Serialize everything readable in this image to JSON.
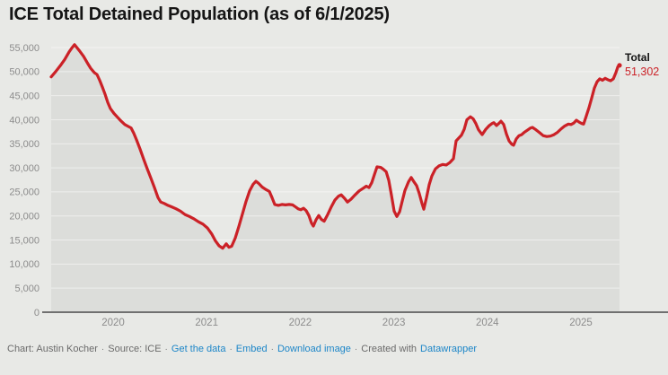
{
  "title": "ICE Total Detained Population (as of 6/1/2025)",
  "annotation": {
    "label": "Total",
    "value": "51,302"
  },
  "footer": {
    "credit": "Chart: Austin Kocher",
    "source": "Source: ICE",
    "sep": "·",
    "links": [
      "Get the data",
      "Embed",
      "Download image"
    ],
    "created_with": "Created with",
    "created_with_link": "Datawrapper"
  },
  "colors": {
    "background": "#e8e9e6",
    "area": "#dcddda",
    "grid": "rgba(255,255,255,0.5)",
    "axis": "#707070",
    "tick": "#8c8c8c",
    "line": "#cb2127",
    "title": "#151515",
    "link": "#1d86c8",
    "footer_text": "#6b6b6b"
  },
  "chart_data": {
    "type": "line",
    "title": "ICE Total Detained Population (as of 6/1/2025)",
    "xlabel": "",
    "ylabel": "",
    "xlim": [
      2019.33,
      2025.42
    ],
    "ylim": [
      0,
      55000
    ],
    "grid": "horizontal",
    "legend_position": "end-of-line",
    "x_ticks": [
      2020,
      2021,
      2022,
      2023,
      2024,
      2025
    ],
    "y_ticks": [
      [
        0,
        "0"
      ],
      [
        5000,
        "5,000"
      ],
      [
        10000,
        "10,000"
      ],
      [
        15000,
        "15,000"
      ],
      [
        20000,
        "20,000"
      ],
      [
        25000,
        "25,000"
      ],
      [
        30000,
        "30,000"
      ],
      [
        35000,
        "35,000"
      ],
      [
        40000,
        "40,000"
      ],
      [
        45000,
        "45,000"
      ],
      [
        50000,
        "50,000"
      ],
      [
        55000,
        "55,000"
      ]
    ],
    "end_label": {
      "name": "Total",
      "value": 51302
    },
    "series": [
      {
        "name": "Total",
        "color": "#cb2127",
        "area_fill": true,
        "points": [
          [
            2019.338,
            48900
          ],
          [
            2019.386,
            50000
          ],
          [
            2019.434,
            51200
          ],
          [
            2019.482,
            52500
          ],
          [
            2019.53,
            54100
          ],
          [
            2019.559,
            54900
          ],
          [
            2019.587,
            55600
          ],
          [
            2019.616,
            54900
          ],
          [
            2019.645,
            54200
          ],
          [
            2019.683,
            53200
          ],
          [
            2019.722,
            51900
          ],
          [
            2019.76,
            50700
          ],
          [
            2019.798,
            49800
          ],
          [
            2019.827,
            49400
          ],
          [
            2019.856,
            48200
          ],
          [
            2019.885,
            46800
          ],
          [
            2019.914,
            45300
          ],
          [
            2019.942,
            43600
          ],
          [
            2019.971,
            42300
          ],
          [
            2020.01,
            41300
          ],
          [
            2020.048,
            40500
          ],
          [
            2020.086,
            39700
          ],
          [
            2020.125,
            39000
          ],
          [
            2020.163,
            38600
          ],
          [
            2020.192,
            38300
          ],
          [
            2020.221,
            37200
          ],
          [
            2020.25,
            35800
          ],
          [
            2020.288,
            33900
          ],
          [
            2020.326,
            31800
          ],
          [
            2020.365,
            29800
          ],
          [
            2020.403,
            27900
          ],
          [
            2020.441,
            25900
          ],
          [
            2020.48,
            23800
          ],
          [
            2020.509,
            22900
          ],
          [
            2020.547,
            22600
          ],
          [
            2020.585,
            22200
          ],
          [
            2020.624,
            21900
          ],
          [
            2020.672,
            21500
          ],
          [
            2020.72,
            21000
          ],
          [
            2020.768,
            20300
          ],
          [
            2020.816,
            19900
          ],
          [
            2020.864,
            19400
          ],
          [
            2020.912,
            18800
          ],
          [
            2020.96,
            18300
          ],
          [
            2021.008,
            17500
          ],
          [
            2021.056,
            16200
          ],
          [
            2021.094,
            14800
          ],
          [
            2021.132,
            13800
          ],
          [
            2021.171,
            13300
          ],
          [
            2021.209,
            14200
          ],
          [
            2021.238,
            13500
          ],
          [
            2021.267,
            13700
          ],
          [
            2021.305,
            15400
          ],
          [
            2021.344,
            17800
          ],
          [
            2021.382,
            20400
          ],
          [
            2021.42,
            23000
          ],
          [
            2021.459,
            25200
          ],
          [
            2021.497,
            26600
          ],
          [
            2021.526,
            27200
          ],
          [
            2021.555,
            26800
          ],
          [
            2021.593,
            26000
          ],
          [
            2021.631,
            25500
          ],
          [
            2021.67,
            25100
          ],
          [
            2021.699,
            23800
          ],
          [
            2021.727,
            22400
          ],
          [
            2021.766,
            22200
          ],
          [
            2021.804,
            22400
          ],
          [
            2021.843,
            22300
          ],
          [
            2021.881,
            22400
          ],
          [
            2021.919,
            22300
          ],
          [
            2021.948,
            21900
          ],
          [
            2021.977,
            21500
          ],
          [
            2022.006,
            21300
          ],
          [
            2022.035,
            21600
          ],
          [
            2022.063,
            21100
          ],
          [
            2022.092,
            20100
          ],
          [
            2022.121,
            18500
          ],
          [
            2022.14,
            17900
          ],
          [
            2022.169,
            19200
          ],
          [
            2022.198,
            20100
          ],
          [
            2022.226,
            19300
          ],
          [
            2022.255,
            18900
          ],
          [
            2022.294,
            20300
          ],
          [
            2022.332,
            21900
          ],
          [
            2022.37,
            23300
          ],
          [
            2022.409,
            24100
          ],
          [
            2022.438,
            24400
          ],
          [
            2022.476,
            23600
          ],
          [
            2022.505,
            22900
          ],
          [
            2022.543,
            23500
          ],
          [
            2022.582,
            24300
          ],
          [
            2022.63,
            25200
          ],
          [
            2022.668,
            25700
          ],
          [
            2022.706,
            26200
          ],
          [
            2022.735,
            25900
          ],
          [
            2022.764,
            26900
          ],
          [
            2022.793,
            28600
          ],
          [
            2022.821,
            30200
          ],
          [
            2022.86,
            30100
          ],
          [
            2022.889,
            29700
          ],
          [
            2022.918,
            29200
          ],
          [
            2022.946,
            27400
          ],
          [
            2022.975,
            24300
          ],
          [
            2023.004,
            21000
          ],
          [
            2023.033,
            19900
          ],
          [
            2023.062,
            20900
          ],
          [
            2023.09,
            23100
          ],
          [
            2023.119,
            25300
          ],
          [
            2023.157,
            27100
          ],
          [
            2023.186,
            28000
          ],
          [
            2023.215,
            27100
          ],
          [
            2023.244,
            26300
          ],
          [
            2023.272,
            24700
          ],
          [
            2023.301,
            22600
          ],
          [
            2023.321,
            21400
          ],
          [
            2023.349,
            23800
          ],
          [
            2023.378,
            26500
          ],
          [
            2023.407,
            28300
          ],
          [
            2023.445,
            29800
          ],
          [
            2023.484,
            30400
          ],
          [
            2023.522,
            30700
          ],
          [
            2023.56,
            30600
          ],
          [
            2023.599,
            31100
          ],
          [
            2023.637,
            31900
          ],
          [
            2023.666,
            35600
          ],
          [
            2023.695,
            36200
          ],
          [
            2023.724,
            36800
          ],
          [
            2023.752,
            38000
          ],
          [
            2023.781,
            40000
          ],
          [
            2023.819,
            40600
          ],
          [
            2023.848,
            40200
          ],
          [
            2023.877,
            39200
          ],
          [
            2023.906,
            37900
          ],
          [
            2023.944,
            36900
          ],
          [
            2023.983,
            38000
          ],
          [
            2024.021,
            38800
          ],
          [
            2024.05,
            39200
          ],
          [
            2024.069,
            39400
          ],
          [
            2024.098,
            38800
          ],
          [
            2024.127,
            39300
          ],
          [
            2024.146,
            39700
          ],
          [
            2024.175,
            39000
          ],
          [
            2024.204,
            37000
          ],
          [
            2024.232,
            35600
          ],
          [
            2024.261,
            34900
          ],
          [
            2024.28,
            34700
          ],
          [
            2024.309,
            36000
          ],
          [
            2024.338,
            36700
          ],
          [
            2024.367,
            36900
          ],
          [
            2024.395,
            37400
          ],
          [
            2024.434,
            37900
          ],
          [
            2024.463,
            38300
          ],
          [
            2024.482,
            38400
          ],
          [
            2024.52,
            37900
          ],
          [
            2024.559,
            37300
          ],
          [
            2024.597,
            36700
          ],
          [
            2024.635,
            36500
          ],
          [
            2024.674,
            36600
          ],
          [
            2024.712,
            36900
          ],
          [
            2024.75,
            37400
          ],
          [
            2024.789,
            38100
          ],
          [
            2024.827,
            38700
          ],
          [
            2024.866,
            39100
          ],
          [
            2024.894,
            39000
          ],
          [
            2024.923,
            39300
          ],
          [
            2024.952,
            39900
          ],
          [
            2024.981,
            39500
          ],
          [
            2025.01,
            39200
          ],
          [
            2025.029,
            39100
          ],
          [
            2025.058,
            40800
          ],
          [
            2025.086,
            42500
          ],
          [
            2025.115,
            44500
          ],
          [
            2025.144,
            46600
          ],
          [
            2025.173,
            47900
          ],
          [
            2025.202,
            48500
          ],
          [
            2025.23,
            48200
          ],
          [
            2025.259,
            48600
          ],
          [
            2025.288,
            48300
          ],
          [
            2025.317,
            48100
          ],
          [
            2025.346,
            48500
          ],
          [
            2025.374,
            49800
          ],
          [
            2025.394,
            51000
          ],
          [
            2025.413,
            51302
          ]
        ]
      }
    ]
  }
}
